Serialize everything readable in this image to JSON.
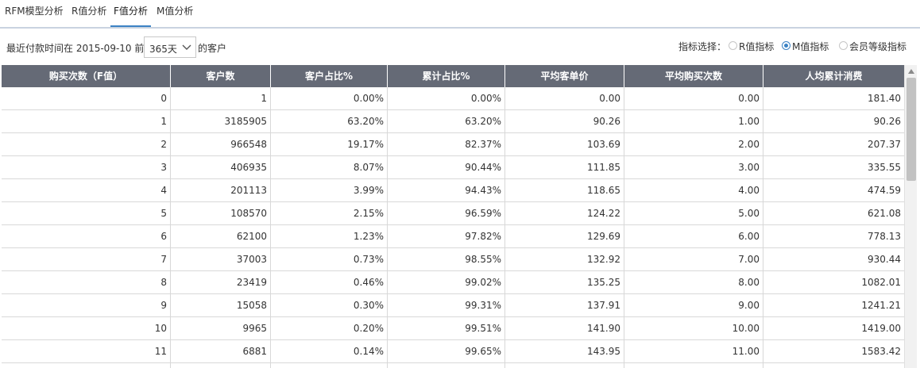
{
  "tabs": [
    {
      "label": "RFM模型分析"
    },
    {
      "label": "R值分析"
    },
    {
      "label": "F值分析"
    },
    {
      "label": "M值分析"
    }
  ],
  "filter": {
    "prefix": "最近付款时间在 2015-09-10 前",
    "period_value": "365天",
    "suffix": "的客户"
  },
  "indicator": {
    "label": "指标选择：",
    "options": [
      {
        "label": "R值指标",
        "checked": false
      },
      {
        "label": "M值指标",
        "checked": true
      },
      {
        "label": "会员等级指标",
        "checked": false
      }
    ]
  },
  "table": {
    "columns": [
      "购买次数（F值）",
      "客户数",
      "客户占比%",
      "累计占比%",
      "平均客单价",
      "平均购买次数",
      "人均累计消费"
    ],
    "rows": [
      [
        "0",
        "1",
        "0.00%",
        "0.00%",
        "0.00",
        "0.00",
        "181.40"
      ],
      [
        "1",
        "3185905",
        "63.20%",
        "63.20%",
        "90.26",
        "1.00",
        "90.26"
      ],
      [
        "2",
        "966548",
        "19.17%",
        "82.37%",
        "103.69",
        "2.00",
        "207.37"
      ],
      [
        "3",
        "406935",
        "8.07%",
        "90.44%",
        "111.85",
        "3.00",
        "335.55"
      ],
      [
        "4",
        "201113",
        "3.99%",
        "94.43%",
        "118.65",
        "4.00",
        "474.59"
      ],
      [
        "5",
        "108570",
        "2.15%",
        "96.59%",
        "124.22",
        "5.00",
        "621.08"
      ],
      [
        "6",
        "62100",
        "1.23%",
        "97.82%",
        "129.69",
        "6.00",
        "778.13"
      ],
      [
        "7",
        "37003",
        "0.73%",
        "98.55%",
        "132.92",
        "7.00",
        "930.44"
      ],
      [
        "8",
        "23419",
        "0.46%",
        "99.02%",
        "135.25",
        "8.00",
        "1082.01"
      ],
      [
        "9",
        "15058",
        "0.30%",
        "99.31%",
        "137.91",
        "9.00",
        "1241.21"
      ],
      [
        "10",
        "9965",
        "0.20%",
        "99.51%",
        "141.90",
        "10.00",
        "1419.00"
      ],
      [
        "11",
        "6881",
        "0.14%",
        "99.65%",
        "143.95",
        "11.00",
        "1583.42"
      ],
      [
        "",
        "",
        "",
        "",
        "",
        "",
        ""
      ]
    ]
  },
  "colors": {
    "header_bg": "#656a76",
    "accent": "#3b82c4",
    "grid_line": "#d8d8d8"
  }
}
